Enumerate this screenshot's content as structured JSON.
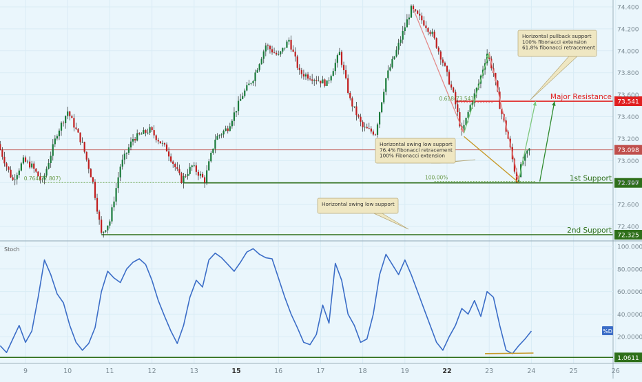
{
  "chart_data": [
    {
      "type": "candlestick",
      "title": "",
      "y_axis": {
        "ticks": [
          "74.400",
          "74.200",
          "74.000",
          "73.800",
          "73.600",
          "73.400",
          "73.200",
          "73.000",
          "72.800",
          "72.600",
          "72.400"
        ],
        "ylim": [
          72.3,
          74.45
        ]
      },
      "x_axis": {
        "ticks": [
          "9",
          "10",
          "11",
          "12",
          "13",
          "15",
          "16",
          "17",
          "18",
          "19",
          "22",
          "23",
          "24",
          "25",
          "26",
          "26"
        ],
        "tick_positions_day": [
          0,
          1,
          2,
          3,
          4,
          5,
          6,
          7,
          8,
          9,
          10,
          11,
          12,
          13,
          14,
          15
        ]
      },
      "grid": true,
      "price_series": {
        "name": "",
        "key_points": [
          {
            "day": -0.6,
            "price": 73.15
          },
          {
            "day": -0.4,
            "price": 72.95
          },
          {
            "day": -0.25,
            "price": 72.82
          },
          {
            "day": 0.0,
            "price": 73.0
          },
          {
            "day": 0.2,
            "price": 72.95
          },
          {
            "day": 0.45,
            "price": 72.8
          },
          {
            "day": 0.8,
            "price": 73.25
          },
          {
            "day": 1.05,
            "price": 73.45
          },
          {
            "day": 1.4,
            "price": 73.15
          },
          {
            "day": 1.65,
            "price": 72.8
          },
          {
            "day": 1.85,
            "price": 72.33
          },
          {
            "day": 2.05,
            "price": 72.45
          },
          {
            "day": 2.3,
            "price": 72.95
          },
          {
            "day": 2.6,
            "price": 73.2
          },
          {
            "day": 3.0,
            "price": 73.28
          },
          {
            "day": 3.4,
            "price": 73.1
          },
          {
            "day": 3.75,
            "price": 72.82
          },
          {
            "day": 4.0,
            "price": 72.95
          },
          {
            "day": 4.3,
            "price": 72.82
          },
          {
            "day": 4.55,
            "price": 73.2
          },
          {
            "day": 4.85,
            "price": 73.3
          },
          {
            "day": 5.2,
            "price": 73.6
          },
          {
            "day": 5.45,
            "price": 73.75
          },
          {
            "day": 5.75,
            "price": 74.05
          },
          {
            "day": 6.05,
            "price": 73.95
          },
          {
            "day": 6.3,
            "price": 74.1
          },
          {
            "day": 6.55,
            "price": 73.8
          },
          {
            "day": 6.9,
            "price": 73.75
          },
          {
            "day": 7.2,
            "price": 73.7
          },
          {
            "day": 7.5,
            "price": 73.98
          },
          {
            "day": 7.75,
            "price": 73.55
          },
          {
            "day": 8.05,
            "price": 73.3
          },
          {
            "day": 8.35,
            "price": 73.25
          },
          {
            "day": 8.6,
            "price": 73.75
          },
          {
            "day": 8.85,
            "price": 74.0
          },
          {
            "day": 9.05,
            "price": 74.22
          },
          {
            "day": 9.2,
            "price": 74.38
          },
          {
            "day": 9.45,
            "price": 74.28
          },
          {
            "day": 9.7,
            "price": 74.15
          },
          {
            "day": 9.95,
            "price": 73.9
          },
          {
            "day": 10.2,
            "price": 73.6
          },
          {
            "day": 10.4,
            "price": 73.25
          },
          {
            "day": 10.6,
            "price": 73.5
          },
          {
            "day": 10.8,
            "price": 73.7
          },
          {
            "day": 11.0,
            "price": 73.98
          },
          {
            "day": 11.15,
            "price": 73.8
          },
          {
            "day": 11.3,
            "price": 73.5
          },
          {
            "day": 11.5,
            "price": 73.2
          },
          {
            "day": 11.7,
            "price": 72.82
          },
          {
            "day": 11.85,
            "price": 73.0
          },
          {
            "day": 12.0,
            "price": 73.1
          }
        ]
      },
      "levels": [
        {
          "name": "Major Resistance",
          "value": 73.541,
          "label": "73.541",
          "color": "#e02020"
        },
        {
          "name": "1st Support",
          "value": 72.797,
          "label": "72.797",
          "color": "#2e6f1a"
        },
        {
          "name": "2nd Support",
          "value": 72.325,
          "label": "72.325",
          "color": "#2e6f1a"
        },
        {
          "name": "",
          "value": 73.098,
          "label": "73.098",
          "color": "#c0504d"
        }
      ],
      "fib_labels": [
        {
          "text": "0.764(72.807)",
          "day": 0.4,
          "price": 72.8
        },
        {
          "text": "100.00%",
          "day": 9.75,
          "price": 72.81
        },
        {
          "text": "0.618(73.541)",
          "day": 10.25,
          "price": 73.53
        }
      ],
      "annotations": [
        {
          "lines": [
            "Horizontal pullback support",
            "100% fibonacci extension",
            "61.8% fibonacci retracement"
          ]
        },
        {
          "lines": [
            "Horizontal swing low support",
            "76.4% fibonacci retracement",
            "100% Fibonacci extension"
          ]
        },
        {
          "lines": [
            "Horizontal swing low support"
          ]
        }
      ]
    },
    {
      "type": "line",
      "title": "Stoch",
      "y_axis": {
        "ticks": [
          "100.0000",
          "80.0000",
          "60.0000",
          "40.0000",
          "20.0000"
        ],
        "ylim": [
          0,
          100
        ]
      },
      "series": [
        {
          "name": "%D",
          "x": [
            -0.6,
            -0.45,
            -0.3,
            -0.15,
            0.0,
            0.15,
            0.3,
            0.45,
            0.6,
            0.75,
            0.9,
            1.05,
            1.2,
            1.35,
            1.5,
            1.65,
            1.8,
            1.95,
            2.1,
            2.25,
            2.4,
            2.55,
            2.7,
            2.85,
            3.0,
            3.15,
            3.3,
            3.45,
            3.6,
            3.75,
            3.9,
            4.05,
            4.2,
            4.35,
            4.5,
            4.65,
            4.8,
            4.95,
            5.1,
            5.25,
            5.4,
            5.55,
            5.7,
            5.85,
            6.0,
            6.15,
            6.3,
            6.45,
            6.6,
            6.75,
            6.9,
            7.05,
            7.2,
            7.35,
            7.5,
            7.65,
            7.8,
            7.95,
            8.1,
            8.25,
            8.4,
            8.55,
            8.7,
            8.85,
            9.0,
            9.15,
            9.3,
            9.45,
            9.6,
            9.75,
            9.9,
            10.05,
            10.2,
            10.35,
            10.5,
            10.65,
            10.8,
            10.95,
            11.1,
            11.25,
            11.4,
            11.55,
            11.7,
            11.85,
            12.0
          ],
          "values": [
            12,
            6,
            18,
            30,
            15,
            25,
            55,
            88,
            75,
            58,
            50,
            30,
            15,
            8,
            14,
            28,
            60,
            78,
            72,
            68,
            80,
            86,
            89,
            84,
            70,
            52,
            38,
            25,
            14,
            30,
            55,
            70,
            64,
            88,
            94,
            90,
            84,
            78,
            86,
            95,
            98,
            93,
            90,
            89,
            72,
            55,
            40,
            28,
            15,
            13,
            22,
            48,
            32,
            85,
            70,
            40,
            30,
            15,
            18,
            40,
            75,
            93,
            84,
            75,
            88,
            75,
            60,
            45,
            30,
            15,
            8,
            20,
            30,
            45,
            40,
            52,
            38,
            60,
            55,
            30,
            8,
            5,
            12,
            18,
            25
          ]
        }
      ],
      "current_value": {
        "label": "%D"
      },
      "baseline": {
        "value": 1.0611,
        "label": "1.0611"
      }
    }
  ]
}
